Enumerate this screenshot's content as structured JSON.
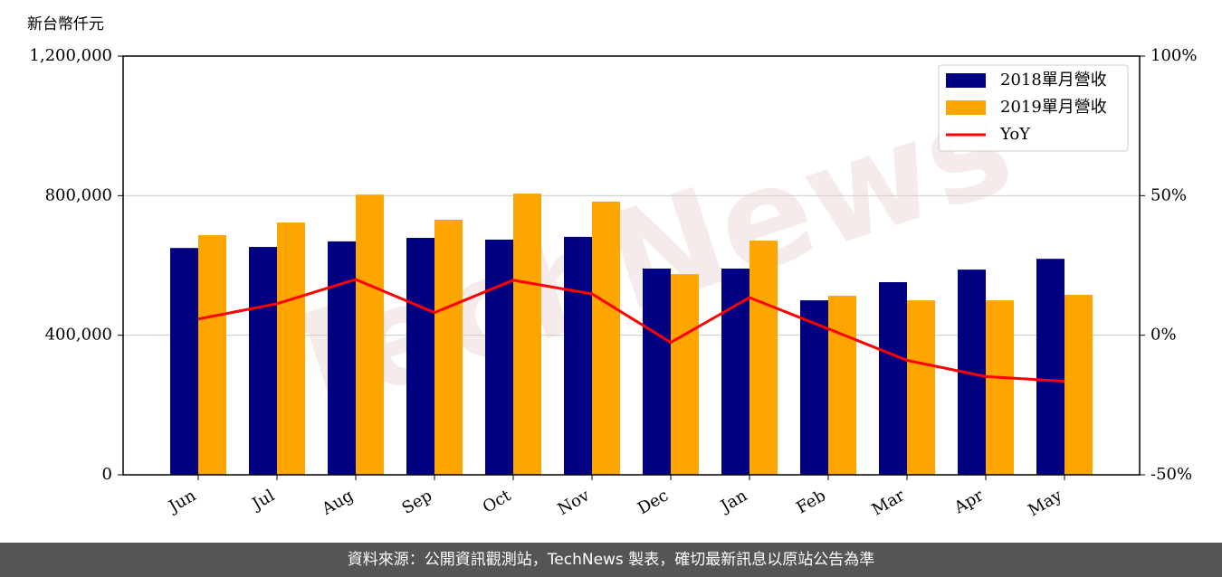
{
  "chart_data": {
    "type": "bar-line",
    "y_label": "新台幣仟元",
    "watermark": "TechNews",
    "footer": "資料來源：公開資訊觀測站，TechNews 製表，確切最新訊息以原站公告為準",
    "categories": [
      "Jun",
      "Jul",
      "Aug",
      "Sep",
      "Oct",
      "Nov",
      "Dec",
      "Jan",
      "Feb",
      "Mar",
      "Apr",
      "May"
    ],
    "series": [
      {
        "name": "2018單月營收",
        "color": "#000080",
        "type": "bar",
        "values": [
          650000,
          653000,
          669000,
          679000,
          674000,
          682000,
          591000,
          591000,
          500000,
          552000,
          588000,
          619000
        ]
      },
      {
        "name": "2019單月營收",
        "color": "#ffa500",
        "type": "bar",
        "values": [
          687000,
          723000,
          803000,
          731000,
          806000,
          783000,
          575000,
          671000,
          513000,
          500000,
          500000,
          516000
        ]
      },
      {
        "name": "YoY",
        "color": "#ff0000",
        "type": "line",
        "axis": "y2",
        "values": [
          5.8,
          11.3,
          20,
          8.1,
          19.7,
          14.8,
          -2.6,
          13.5,
          2.3,
          -9,
          -14.8,
          -16.5
        ]
      }
    ],
    "ylim": [
      0,
      1200000
    ],
    "yticks": [
      0,
      {
        "value": 400000,
        "label": "400,000"
      },
      {
        "value": 800000,
        "label": "800,000"
      },
      {
        "value": 1200000,
        "label": "1,200,000"
      }
    ],
    "y2lim": [
      -50,
      100
    ],
    "y2ticks": [
      {
        "value": -50,
        "label": "-50%"
      },
      {
        "value": 0,
        "label": "0%"
      },
      {
        "value": 50,
        "label": "50%"
      },
      {
        "value": 100,
        "label": "100%"
      }
    ],
    "grid": true,
    "legend": "upper right"
  }
}
